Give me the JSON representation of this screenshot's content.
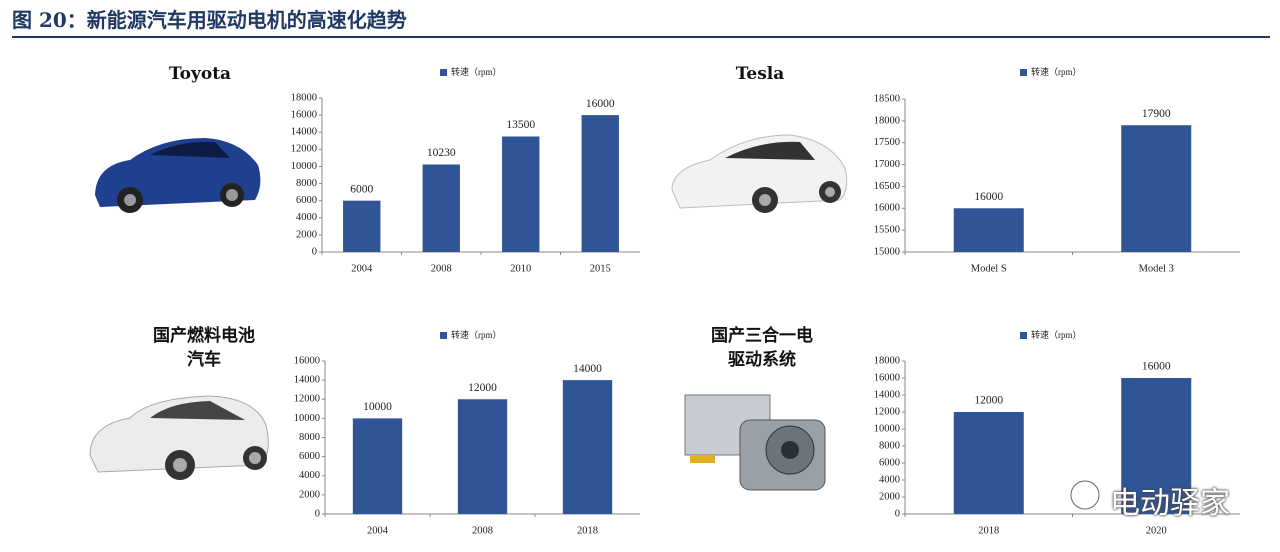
{
  "figure_title": "图 20：新能源汽车用驱动电机的高速化趋势",
  "watermark": "电动驿家",
  "chart_data": [
    {
      "type": "bar",
      "title": "Toyota",
      "categories": [
        "2004",
        "2008",
        "2010",
        "2015"
      ],
      "series": [
        {
          "name": "转速（rpm）",
          "color": "#2f5597",
          "values": [
            6000,
            10230,
            13500,
            16000
          ]
        }
      ],
      "ylim": [
        0,
        18000
      ],
      "yticks": [
        0,
        2000,
        4000,
        6000,
        8000,
        10000,
        12000,
        14000,
        16000,
        18000
      ]
    },
    {
      "type": "bar",
      "title": "Tesla",
      "categories": [
        "Model S",
        "Model 3"
      ],
      "series": [
        {
          "name": "转速（rpm）",
          "color": "#2f5597",
          "values": [
            16000,
            17900
          ]
        }
      ],
      "ylim": [
        15000,
        18500
      ],
      "yticks": [
        15000,
        15500,
        16000,
        16500,
        17000,
        17500,
        18000,
        18500
      ]
    },
    {
      "type": "bar",
      "title": "国产燃料电池汽车",
      "categories": [
        "2004",
        "2008",
        "2018"
      ],
      "series": [
        {
          "name": "转速（rpm）",
          "color": "#2f5597",
          "values": [
            10000,
            12000,
            14000
          ]
        }
      ],
      "ylim": [
        0,
        16000
      ],
      "yticks": [
        0,
        2000,
        4000,
        6000,
        8000,
        10000,
        12000,
        14000,
        16000
      ]
    },
    {
      "type": "bar",
      "title": "国产三合一电驱动系统",
      "categories": [
        "2018",
        "2020"
      ],
      "series": [
        {
          "name": "转速（rpm）",
          "color": "#2f5597",
          "values": [
            12000,
            16000
          ]
        }
      ],
      "ylim": [
        0,
        18000
      ],
      "yticks": [
        0,
        2000,
        4000,
        6000,
        8000,
        10000,
        12000,
        14000,
        16000,
        18000
      ]
    }
  ]
}
